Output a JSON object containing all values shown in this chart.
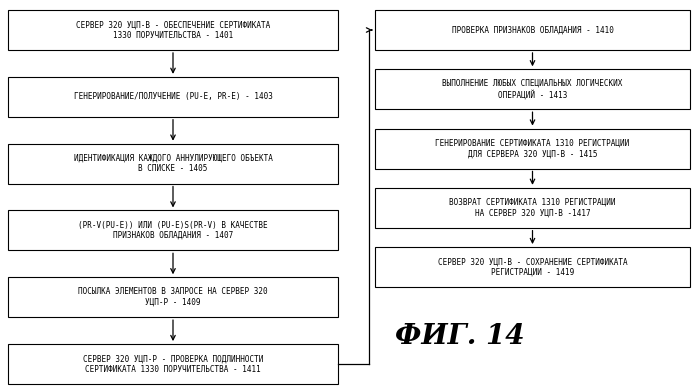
{
  "left_boxes": [
    {
      "text": "СЕРВЕР 320 УЦП-В - ОБЕСПЕЧЕНИЕ СЕРТИФИКАТА\n1330 ПОРУЧИТЕЛЬСТВА - 1401"
    },
    {
      "text": "ГЕНЕРИРОВАНИЕ/ПОЛУЧЕНИЕ (PU-E, PR-E) - 1403"
    },
    {
      "text": "ИДЕНТИФИКАЦИЯ КАЖДОГО АННУЛИРУЮЩЕГО ОБЪЕКТА\nВ СПИСКЕ - 1405"
    },
    {
      "text": "(PR-V(PU-E)) ИЛИ (PU-E)S(PR-V) В КАЧЕСТВЕ\nПРИЗНАКОВ ОБЛАДАНИЯ - 1407"
    },
    {
      "text": "ПОСЫЛКА ЭЛЕМЕНТОВ В ЗАПРОСЕ НА СЕРВЕР 320\nУЦП-Р - 1409"
    },
    {
      "text": "СЕРВЕР 320 УЦП-Р - ПРОВЕРКА ПОДЛИННОСТИ\nСЕРТИФИКАТА 1330 ПОРУЧИТЕЛЬСТВА - 1411"
    }
  ],
  "right_boxes": [
    {
      "text": "ПРОВЕРКА ПРИЗНАКОВ ОБЛАДАНИЯ - 1410"
    },
    {
      "text": "ВЫПОЛНЕНИЕ ЛЮБЫХ СПЕЦИАЛЬНЫХ ЛОГИЧЕСКИХ\nОПЕРАЦИЙ - 1413"
    },
    {
      "text": "ГЕНЕРИРОВАНИЕ СЕРТИФИКАТА 1310 РЕГИСТРАЦИИ\nДЛЯ СЕРВЕРА 320 УЦП-В - 1415"
    },
    {
      "text": "ВОЗВРАТ СЕРТИФИКАТА 1310 РЕГИСТРАЦИИ\nНА СЕРВЕР 320 УЦП-В -1417"
    },
    {
      "text": "СЕРВЕР 320 УЦП-В - СОХРАНЕНИЕ СЕРТИФИКАТА\nРЕГИСТРАЦИИ - 1419"
    }
  ],
  "fig_label": "ФИГ. 14",
  "box_color": "#ffffff",
  "border_color": "#000000",
  "text_color": "#000000",
  "bg_color": "#ffffff",
  "font_size": 5.5,
  "fig_label_size": 20
}
